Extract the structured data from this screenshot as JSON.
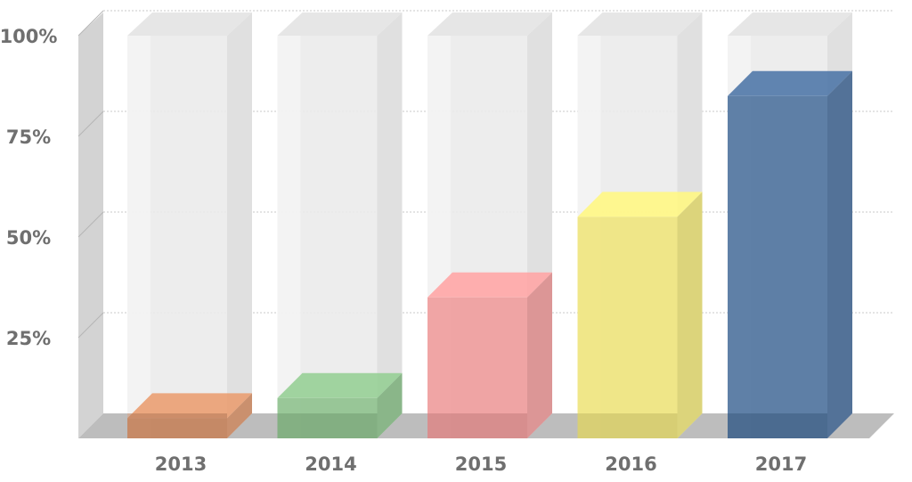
{
  "chart_data": {
    "type": "bar",
    "style": "3d-cylinder-glass",
    "categories": [
      "2013",
      "2014",
      "2015",
      "2016",
      "2017"
    ],
    "values": [
      5,
      10,
      35,
      55,
      85
    ],
    "ylim": [
      0,
      100
    ],
    "yticks": [
      25,
      50,
      75,
      100
    ],
    "ytick_labels": [
      "25%",
      "50%",
      "75%",
      "100%"
    ],
    "grid": true,
    "legend": "none",
    "colors": [
      "#d9936a",
      "#8cc08b",
      "#ef9a9a",
      "#efe57a",
      "#4a6f9c"
    ]
  }
}
